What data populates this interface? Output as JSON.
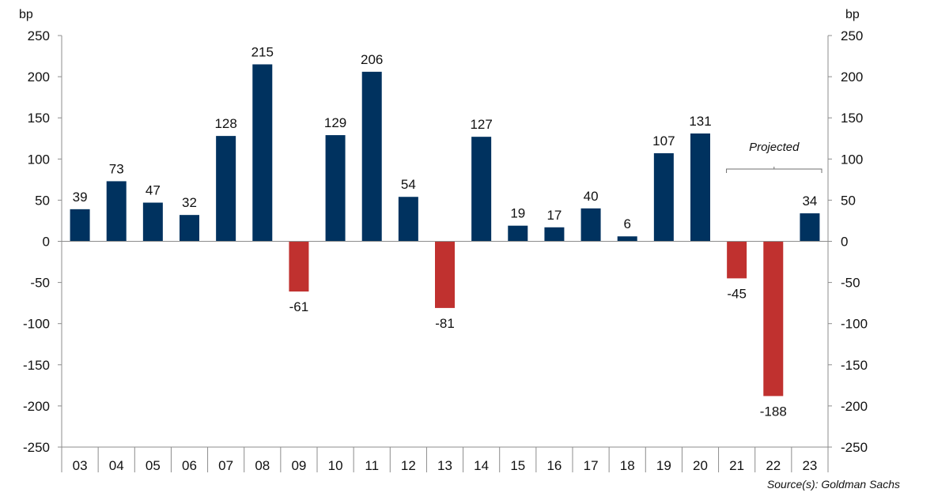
{
  "chart_data": {
    "type": "bar",
    "title": "",
    "xlabel": "",
    "ylabel": "bp",
    "ylabel_right": "bp",
    "ylim": [
      -250,
      250
    ],
    "yticks": [
      250,
      200,
      150,
      100,
      50,
      0,
      -50,
      -100,
      -150,
      -200,
      -250
    ],
    "categories": [
      "03",
      "04",
      "05",
      "06",
      "07",
      "08",
      "09",
      "10",
      "11",
      "12",
      "13",
      "14",
      "15",
      "16",
      "17",
      "18",
      "19",
      "20",
      "21",
      "22",
      "23"
    ],
    "values": [
      39,
      73,
      47,
      32,
      128,
      215,
      -61,
      129,
      206,
      54,
      -81,
      127,
      19,
      17,
      40,
      6,
      107,
      131,
      -45,
      -188,
      34
    ],
    "colors": {
      "positive": "#00325f",
      "negative": "#c0312f"
    },
    "annotation": {
      "text": "Projected",
      "spans_categories": [
        "21",
        "23"
      ]
    },
    "source": "Source(s): Goldman Sachs"
  }
}
